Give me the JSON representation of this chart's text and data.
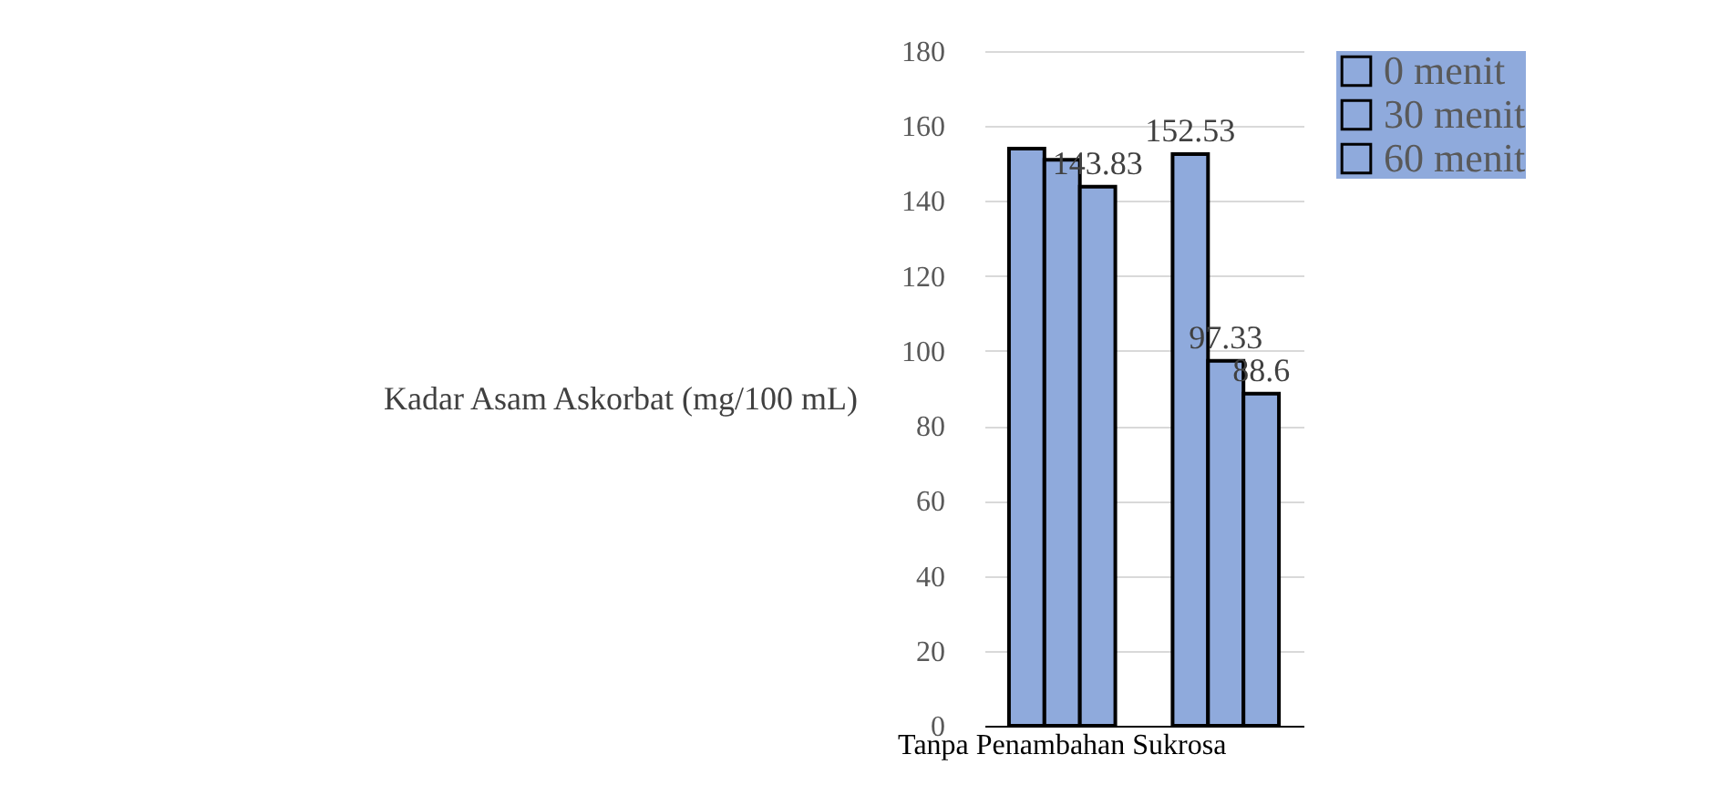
{
  "chart_data": {
    "type": "bar",
    "ylabel": "Kadar Asam Askorbat (mg/100 mL)",
    "categories": [
      "Tanpa Penambahan Sukrosa",
      null
    ],
    "series": [
      {
        "name": "0 menit",
        "color": "#8faadc",
        "values": [
          154,
          152.53
        ],
        "value_labels": [
          null,
          "152.53"
        ]
      },
      {
        "name": "30 menit",
        "color": "#8faadc",
        "values": [
          151,
          97.33
        ],
        "value_labels": [
          null,
          "97.33"
        ]
      },
      {
        "name": "60 menit",
        "color": "#8faadc",
        "values": [
          143.83,
          88.6
        ],
        "value_labels": [
          "143.83",
          "88.6"
        ]
      }
    ],
    "ylim": [
      0,
      180
    ],
    "yticks": [
      0,
      20,
      40,
      60,
      80,
      100,
      120,
      140,
      160,
      180
    ],
    "grid": "y",
    "legend": "right"
  }
}
